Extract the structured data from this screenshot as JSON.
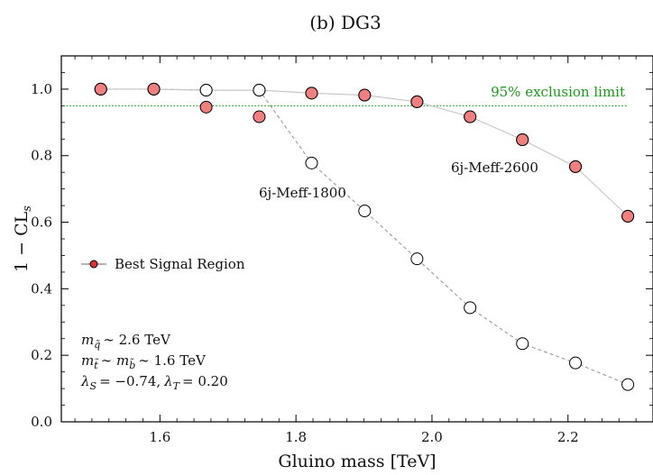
{
  "chart_data": {
    "type": "line",
    "title": "(b) DG3",
    "xlabel": "Gluino mass [TeV]",
    "ylabel": "1 − CL",
    "ylabel_sub": "s",
    "xlim": [
      1.455,
      2.325
    ],
    "ylim": [
      0.0,
      1.1
    ],
    "xticks": [
      "1.6",
      "1.8",
      "2.0",
      "2.2"
    ],
    "xtick_values": [
      1.6,
      1.8,
      2.0,
      2.2
    ],
    "yticks": [
      "0.0",
      "0.2",
      "0.4",
      "0.6",
      "0.8",
      "1.0"
    ],
    "ytick_values": [
      0.0,
      0.2,
      0.4,
      0.6,
      0.8,
      1.0
    ],
    "grid": false,
    "reference_line": {
      "label": "95% exclusion limit",
      "y": 0.95,
      "color": "#22aa22"
    },
    "series": [
      {
        "name": "6j-Meff-1800",
        "line_color": "#9a9a9a",
        "line_style": "dashed",
        "marker_fill": "#ffffff",
        "x": [
          1.513,
          1.591,
          1.668,
          1.746,
          1.823,
          1.901,
          1.978,
          2.056,
          2.133,
          2.211,
          2.288
        ],
        "y": [
          1.0,
          1.0,
          0.997,
          0.997,
          0.778,
          0.634,
          0.49,
          0.343,
          0.235,
          0.177,
          0.112
        ]
      },
      {
        "name": "6j-Meff-2600",
        "line_color": "#c4c4c4",
        "line_style": "solid",
        "marker_fill": "#ffffff",
        "x": [
          1.513,
          1.591,
          1.668,
          1.746,
          1.823,
          1.901,
          1.978,
          2.056,
          2.133,
          2.211,
          2.288
        ],
        "y": [
          1.0,
          1.0,
          0.997,
          0.997,
          0.988,
          0.982,
          0.962,
          0.917,
          0.848,
          0.767,
          0.618
        ]
      }
    ],
    "best_signal_region": {
      "label": "Best Signal Region",
      "marker_fill": "#f08080",
      "legend_marker_fill": "#e03030",
      "x": [
        1.513,
        1.591,
        1.668,
        1.746,
        1.823,
        1.901,
        1.978,
        2.056,
        2.133,
        2.211,
        2.288
      ],
      "y": [
        1.0,
        1.0,
        0.946,
        0.917,
        0.988,
        0.982,
        0.962,
        0.917,
        0.848,
        0.767,
        0.618
      ]
    },
    "legend_position": "center-left",
    "annotations": {
      "sr1800": "6j-Meff-1800",
      "sr2600": "6j-Meff-2600",
      "param_q": "∼ 2.6 TeV",
      "param_tb": "∼ 1.6 TeV",
      "param_lambda": "= −0.74,",
      "param_lambda_T": "= 0.20"
    }
  }
}
